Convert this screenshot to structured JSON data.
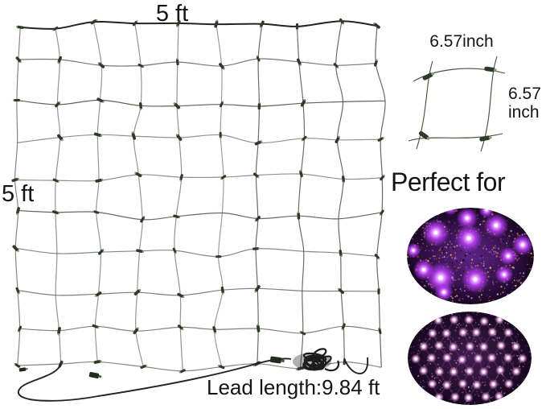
{
  "diagram": {
    "net": {
      "width_label": "5 ft",
      "height_label": "5 ft",
      "lead_length_label": "Lead length:9.84 ft"
    },
    "cell_detail": {
      "width_label": "6.57inch",
      "height_label_line1": "6.57",
      "height_label_line2": "inch"
    },
    "heading": "Perfect for",
    "photos": [
      {
        "name": "purple-lights-on-bush-photo"
      },
      {
        "name": "purple-net-lights-photo"
      }
    ]
  },
  "icons": {
    "net": "net-grid-graphic",
    "coil": "cord-coil-icon",
    "plug": "power-plug-icon",
    "bulb": "mini-light-bulb-icon"
  },
  "colors": {
    "background": "#ffffff",
    "text": "#151515",
    "wire": "#4a5244",
    "wire_dark": "#20251e",
    "bulb": "#2e3a28",
    "bulb_tip": "#8a9a78",
    "cord": "#242424",
    "glow_purple": "#b43cf0",
    "led_pink": "#f8d2f4",
    "photo1_bg": "#3c1455",
    "photo2_bg": "#27102f",
    "sparkle_gold": "#c27a3e"
  }
}
